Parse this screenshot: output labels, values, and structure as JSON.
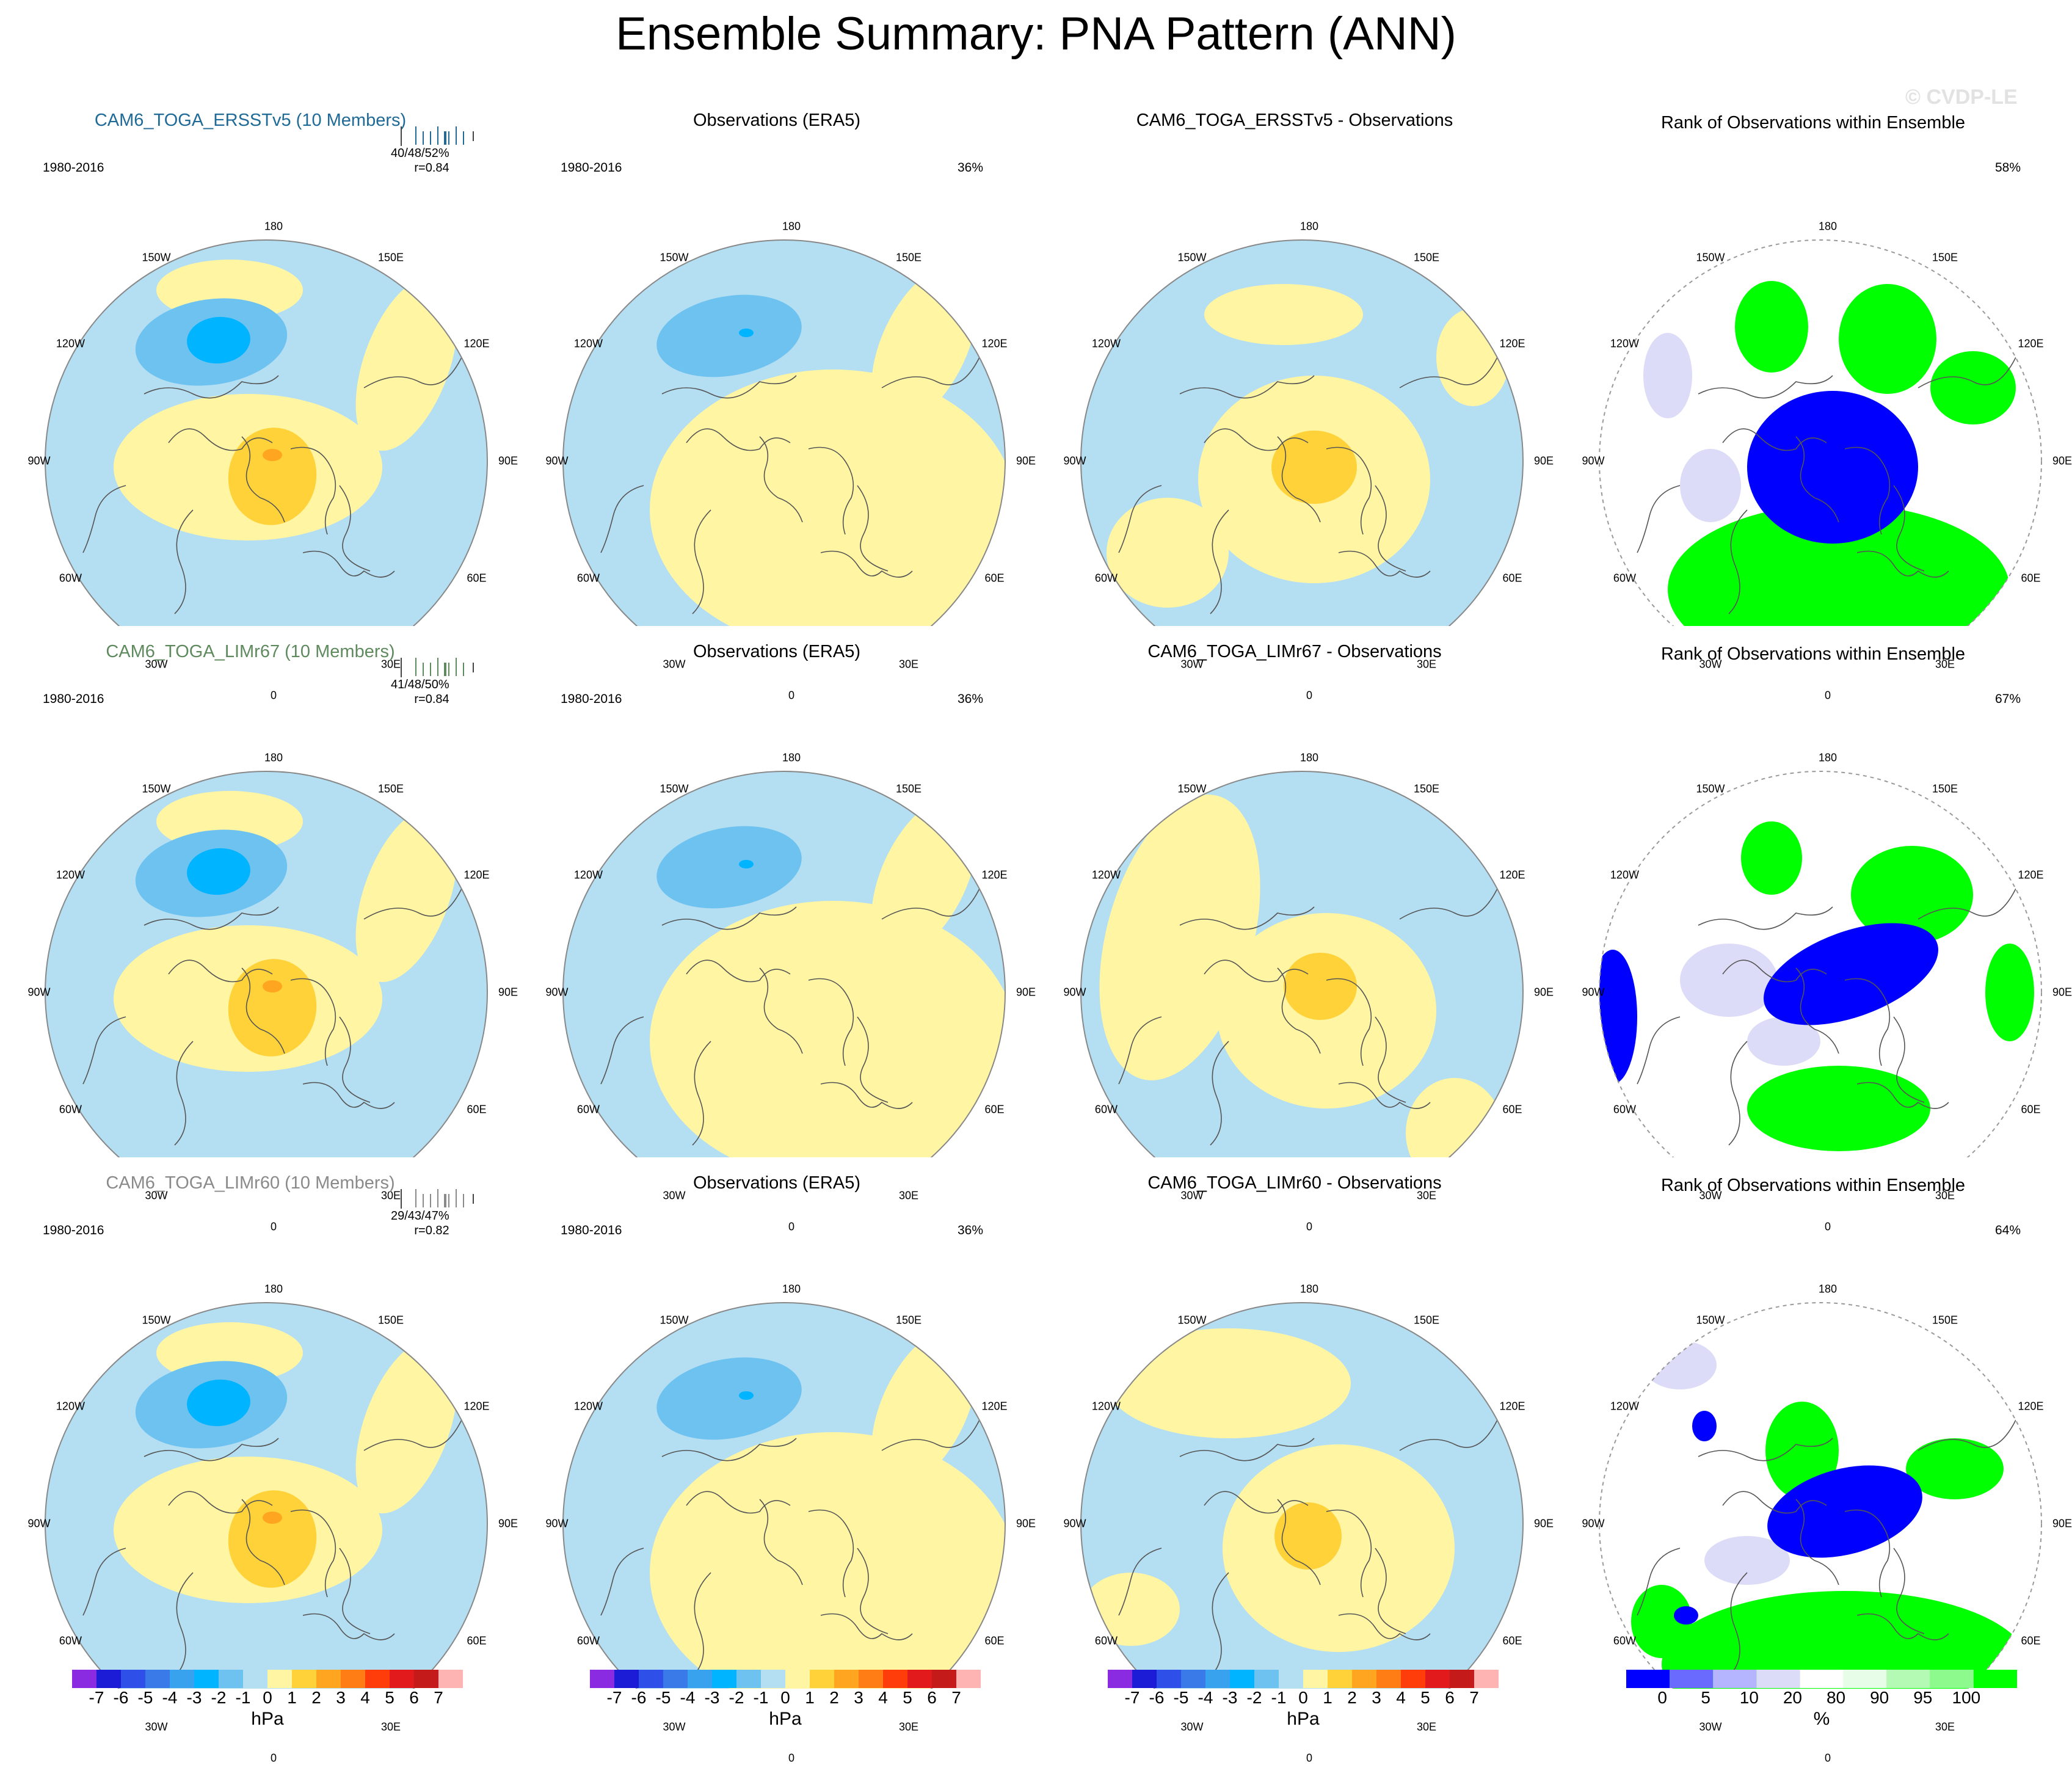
{
  "title": "Ensemble Summary: PNA Pattern (ANN)",
  "watermark": "© CVDP-LE",
  "period": "1980-2016",
  "lon_labels": [
    "180",
    "150E",
    "120E",
    "90E",
    "60E",
    "30E",
    "0",
    "30W",
    "60W",
    "90W",
    "120W",
    "150W"
  ],
  "colors": {
    "ens_row1": "#1f6a96",
    "ens_row2": "#5e8a5e",
    "ens_row3": "#8a8a8a",
    "neg1": "#b4def2",
    "neg2": "#6ec2f0",
    "neg3": "#00b4ff",
    "pos1": "#fff5a3",
    "pos2": "#ffd23a",
    "pos3": "#ffa51f",
    "rank_low": "#0000ff",
    "rank_low2": "#dcdcf8",
    "rank_high": "#00ff00",
    "rank_high2": "#e8fde8"
  },
  "rows": [
    {
      "ensemble_title": "CAM6_TOGA_ERSSTv5 (10 Members)",
      "stats_line1": "40/48/52%",
      "stats_line2": "r=0.84",
      "obs_title": "Observations (ERA5)",
      "obs_pct": "36%",
      "diff_title": "CAM6_TOGA_ERSSTv5 - Observations",
      "rank_title": "Rank of Observations within Ensemble",
      "rank_pct": "58%"
    },
    {
      "ensemble_title": "CAM6_TOGA_LIMr67 (10 Members)",
      "stats_line1": "41/48/50%",
      "stats_line2": "r=0.84",
      "obs_title": "Observations (ERA5)",
      "obs_pct": "36%",
      "diff_title": "CAM6_TOGA_LIMr67 - Observations",
      "rank_title": "Rank of Observations within Ensemble",
      "rank_pct": "67%"
    },
    {
      "ensemble_title": "CAM6_TOGA_LIMr60 (10 Members)",
      "stats_line1": "29/43/47%",
      "stats_line2": "r=0.82",
      "obs_title": "Observations (ERA5)",
      "obs_pct": "36%",
      "diff_title": "CAM6_TOGA_LIMr60 - Observations",
      "rank_title": "Rank of Observations within Ensemble",
      "rank_pct": "64%"
    }
  ],
  "colorbar_hpa": {
    "labels": [
      "-7",
      "-6",
      "-5",
      "-4",
      "-3",
      "-2",
      "-1",
      "0",
      "1",
      "2",
      "3",
      "4",
      "5",
      "6",
      "7"
    ],
    "colors": [
      "#8a2be2",
      "#1c1cd6",
      "#2f50e8",
      "#3a7ae8",
      "#38a2ee",
      "#00b4ff",
      "#6ec2f0",
      "#b4def2",
      "#fff5a3",
      "#ffd23a",
      "#ffa51f",
      "#ff7d14",
      "#ff3d0a",
      "#e31a1c",
      "#c41a1a",
      "#ffb4b4"
    ],
    "unit": "hPa"
  },
  "colorbar_rank": {
    "labels": [
      "0",
      "5",
      "10",
      "20",
      "80",
      "90",
      "95",
      "100"
    ],
    "colors": [
      "#0000ff",
      "#6a6aff",
      "#b4b4ff",
      "#dcdcf8",
      "#ffffff",
      "#e8fde8",
      "#b4fab4",
      "#8cfa8c",
      "#00ff00"
    ],
    "unit": "%"
  }
}
